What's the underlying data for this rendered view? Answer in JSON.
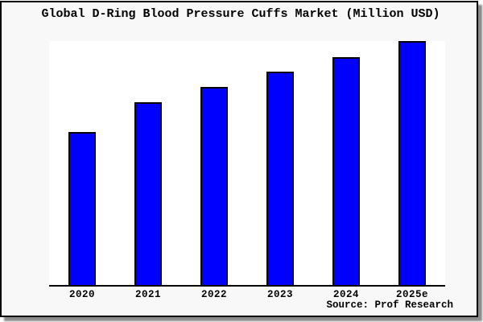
{
  "chart": {
    "title": "Global D-Ring Blood Pressure Cuffs Market (Million USD)",
    "source_label": "Source: Prof Research",
    "colors": {
      "bar_fill": "#0000ff",
      "bar_border": "#000000",
      "figure_bg": "#f8f8f8",
      "plot_bg": "#ffffff",
      "axis": "#000000",
      "frame_border": "#000000",
      "shadow": "#8c8c8c",
      "text": "#000000"
    }
  },
  "chart_data": {
    "type": "bar",
    "title": "Global D-Ring Blood Pressure Cuffs Market (Million USD)",
    "categories": [
      "2020",
      "2021",
      "2022",
      "2023",
      "2024",
      "2025e"
    ],
    "values": [
      62.6,
      75.0,
      81.2,
      87.4,
      93.4,
      100.0
    ],
    "value_note": "No y-axis scale or data labels are shown in the image; values are relative bar heights with the tallest bar (2025e) normalized to 100.",
    "xlabel": "",
    "ylabel": "",
    "ylim": [
      0,
      100
    ],
    "grid": false,
    "legend": "none",
    "annotations": [
      "Source: Prof Research"
    ]
  }
}
